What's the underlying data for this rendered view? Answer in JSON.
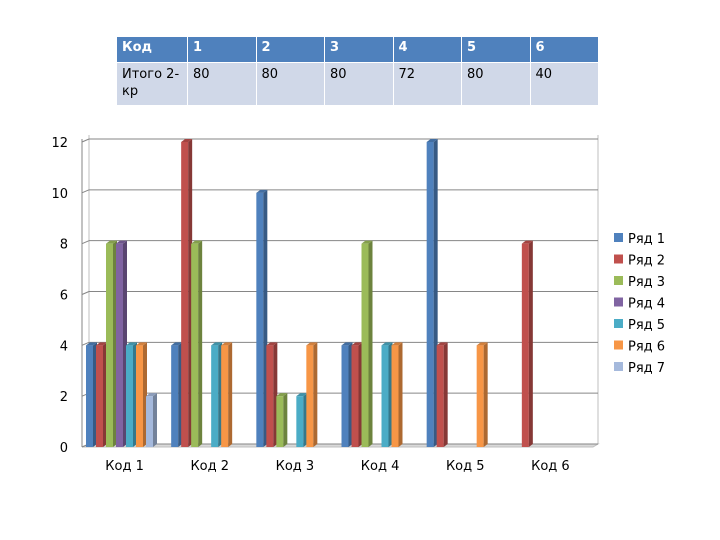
{
  "table": {
    "headers": [
      "Код",
      "1",
      "2",
      "3",
      "4",
      "5",
      "6"
    ],
    "row": [
      "Итого 2-кр",
      "80",
      "80",
      "80",
      "72",
      "80",
      "40"
    ]
  },
  "chart_data": {
    "type": "bar",
    "title": "",
    "xlabel": "",
    "ylabel": "",
    "categories": [
      "Код 1",
      "Код 2",
      "Код 3",
      "Код 4",
      "Код 5",
      "Код 6"
    ],
    "yticks": [
      "0",
      "2",
      "4",
      "6",
      "8",
      "10",
      "12"
    ],
    "ylim": [
      0,
      12
    ],
    "grid": true,
    "legend_position": "right",
    "series": [
      {
        "name": "Ряд 1",
        "color": "#4f81bd",
        "values": [
          4,
          4,
          10,
          4,
          12,
          null
        ]
      },
      {
        "name": "Ряд 2",
        "color": "#c0504d",
        "values": [
          4,
          12,
          4,
          4,
          4,
          8
        ]
      },
      {
        "name": "Ряд 3",
        "color": "#9bbb59",
        "values": [
          8,
          8,
          2,
          8,
          null,
          null
        ]
      },
      {
        "name": "Ряд 4",
        "color": "#8064a2",
        "values": [
          8,
          null,
          null,
          null,
          null,
          null
        ]
      },
      {
        "name": "Ряд 5",
        "color": "#4bacc6",
        "values": [
          4,
          4,
          2,
          4,
          null,
          null
        ]
      },
      {
        "name": "Ряд 6",
        "color": "#f79646",
        "values": [
          4,
          4,
          4,
          4,
          4,
          null
        ]
      },
      {
        "name": "Ряд 7",
        "color": "#a5b9dc",
        "values": [
          2,
          null,
          null,
          null,
          null,
          null
        ]
      }
    ]
  }
}
